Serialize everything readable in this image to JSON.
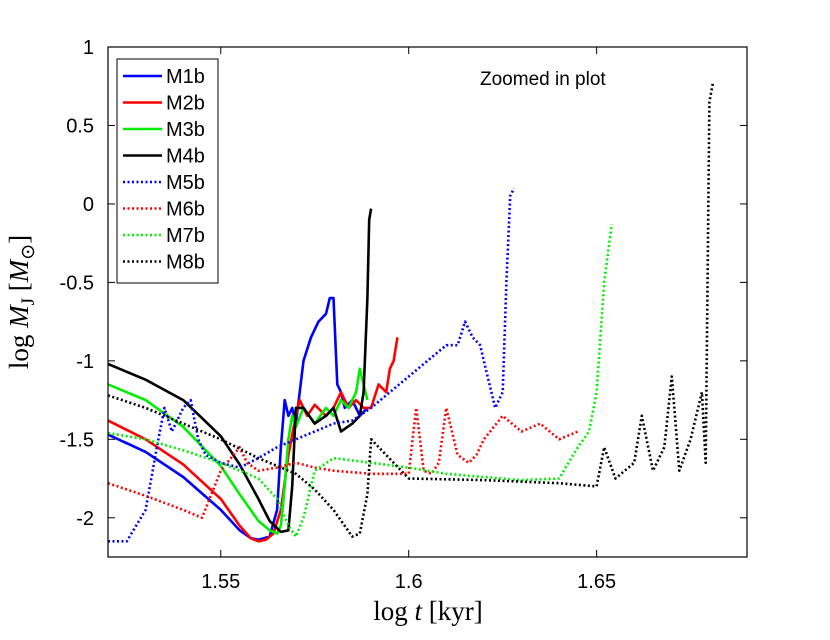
{
  "chart_data": {
    "type": "line",
    "title": "",
    "annotation": "Zoomed in plot",
    "xlabel": "log t [kyr]",
    "ylabel": "log M_J [M_sun]",
    "xlim": [
      1.52,
      1.69
    ],
    "ylim": [
      -2.25,
      1.0
    ],
    "xticks": [
      1.55,
      1.6,
      1.65
    ],
    "xtick_labels": [
      "1.55",
      "1.6",
      "1.65"
    ],
    "yticks": [
      -2,
      -1.5,
      -1,
      -0.5,
      0,
      0.5,
      1
    ],
    "ytick_labels": [
      "-2",
      "-1.5",
      "-1",
      "-0.5",
      "0",
      "0.5",
      "1"
    ],
    "legend_position": "top-left",
    "series": [
      {
        "name": "M1b",
        "color": "#0000ff",
        "style": "solid",
        "x": [
          1.52,
          1.53,
          1.54,
          1.55,
          1.555,
          1.558,
          1.56,
          1.563,
          1.565,
          1.566,
          1.567,
          1.568,
          1.569,
          1.57,
          1.572,
          1.574,
          1.576,
          1.578,
          1.579,
          1.58,
          1.581,
          1.582,
          1.583,
          1.585,
          1.587,
          1.589
        ],
        "y": [
          -1.47,
          -1.58,
          -1.74,
          -1.95,
          -2.08,
          -2.13,
          -2.14,
          -2.12,
          -1.95,
          -1.55,
          -1.25,
          -1.35,
          -1.3,
          -1.4,
          -1.0,
          -0.85,
          -0.75,
          -0.7,
          -0.6,
          -0.6,
          -1.15,
          -1.2,
          -1.3,
          -1.25,
          -1.35,
          -1.3
        ]
      },
      {
        "name": "M2b",
        "color": "#ff0000",
        "style": "solid",
        "x": [
          1.52,
          1.53,
          1.54,
          1.55,
          1.555,
          1.558,
          1.56,
          1.562,
          1.564,
          1.566,
          1.568,
          1.57,
          1.571,
          1.573,
          1.575,
          1.578,
          1.58,
          1.582,
          1.584,
          1.586,
          1.588,
          1.59,
          1.592,
          1.594,
          1.595,
          1.596,
          1.597
        ],
        "y": [
          -1.38,
          -1.5,
          -1.66,
          -1.88,
          -2.05,
          -2.13,
          -2.15,
          -2.14,
          -2.1,
          -1.95,
          -1.6,
          -1.35,
          -1.25,
          -1.35,
          -1.28,
          -1.35,
          -1.3,
          -1.2,
          -1.3,
          -1.25,
          -1.3,
          -1.3,
          -1.15,
          -1.2,
          -1.05,
          -1.0,
          -0.85
        ]
      },
      {
        "name": "M3b",
        "color": "#00ee00",
        "style": "solid",
        "x": [
          1.52,
          1.53,
          1.54,
          1.55,
          1.555,
          1.56,
          1.563,
          1.565,
          1.566,
          1.567,
          1.568,
          1.569,
          1.57,
          1.572,
          1.575,
          1.578,
          1.58,
          1.582,
          1.584,
          1.586,
          1.587,
          1.589
        ],
        "y": [
          -1.15,
          -1.25,
          -1.42,
          -1.67,
          -1.85,
          -2.02,
          -2.08,
          -2.1,
          -2.05,
          -1.8,
          -1.5,
          -1.35,
          -1.42,
          -1.3,
          -1.4,
          -1.3,
          -1.35,
          -1.25,
          -1.3,
          -1.2,
          -1.05,
          -1.25
        ]
      },
      {
        "name": "M4b",
        "color": "#000000",
        "style": "solid",
        "x": [
          1.52,
          1.53,
          1.54,
          1.55,
          1.555,
          1.56,
          1.563,
          1.566,
          1.568,
          1.569,
          1.57,
          1.572,
          1.575,
          1.578,
          1.58,
          1.582,
          1.585,
          1.587,
          1.588,
          1.589,
          1.5895,
          1.59
        ],
        "y": [
          -1.02,
          -1.12,
          -1.25,
          -1.48,
          -1.66,
          -1.88,
          -2.02,
          -2.09,
          -2.08,
          -1.8,
          -1.3,
          -1.3,
          -1.4,
          -1.35,
          -1.3,
          -1.45,
          -1.4,
          -1.35,
          -1.2,
          -0.6,
          -0.1,
          -0.03
        ]
      },
      {
        "name": "M5b",
        "color": "#0000ff",
        "style": "dotted",
        "x": [
          1.52,
          1.525,
          1.53,
          1.533,
          1.535,
          1.537,
          1.54,
          1.542,
          1.544,
          1.546,
          1.55,
          1.555,
          1.56,
          1.565,
          1.57,
          1.575,
          1.58,
          1.585,
          1.59,
          1.595,
          1.6,
          1.605,
          1.61,
          1.613,
          1.615,
          1.617,
          1.619,
          1.621,
          1.623,
          1.625,
          1.626,
          1.627,
          1.628
        ],
        "y": [
          -2.15,
          -2.15,
          -1.95,
          -1.55,
          -1.3,
          -1.45,
          -1.3,
          -1.25,
          -1.5,
          -1.6,
          -1.65,
          -1.68,
          -1.62,
          -1.55,
          -1.5,
          -1.45,
          -1.4,
          -1.38,
          -1.3,
          -1.2,
          -1.1,
          -1.0,
          -0.9,
          -0.9,
          -0.75,
          -0.85,
          -0.9,
          -1.1,
          -1.3,
          -1.2,
          -0.5,
          0.05,
          0.1
        ]
      },
      {
        "name": "M6b",
        "color": "#ff0000",
        "style": "dotted",
        "x": [
          1.52,
          1.53,
          1.54,
          1.545,
          1.55,
          1.555,
          1.557,
          1.56,
          1.565,
          1.57,
          1.575,
          1.58,
          1.59,
          1.6,
          1.602,
          1.604,
          1.606,
          1.608,
          1.61,
          1.613,
          1.616,
          1.618,
          1.62,
          1.625,
          1.63,
          1.635,
          1.64,
          1.645
        ],
        "y": [
          -1.78,
          -1.86,
          -1.95,
          -2.0,
          -1.7,
          -1.55,
          -1.65,
          -1.7,
          -1.68,
          -1.65,
          -1.68,
          -1.7,
          -1.72,
          -1.72,
          -1.3,
          -1.7,
          -1.72,
          -1.65,
          -1.3,
          -1.6,
          -1.65,
          -1.6,
          -1.5,
          -1.35,
          -1.45,
          -1.4,
          -1.5,
          -1.45
        ]
      },
      {
        "name": "M7b",
        "color": "#00ee00",
        "style": "dotted",
        "x": [
          1.52,
          1.53,
          1.54,
          1.55,
          1.56,
          1.565,
          1.568,
          1.57,
          1.572,
          1.575,
          1.58,
          1.59,
          1.6,
          1.61,
          1.62,
          1.63,
          1.64,
          1.645,
          1.648,
          1.65,
          1.652,
          1.654
        ],
        "y": [
          -1.46,
          -1.5,
          -1.57,
          -1.65,
          -1.75,
          -1.88,
          -2.05,
          -2.12,
          -2.0,
          -1.7,
          -1.62,
          -1.65,
          -1.68,
          -1.72,
          -1.74,
          -1.76,
          -1.75,
          -1.55,
          -1.45,
          -1.2,
          -0.5,
          -0.13
        ]
      },
      {
        "name": "M8b",
        "color": "#000000",
        "style": "dotted",
        "x": [
          1.52,
          1.53,
          1.54,
          1.55,
          1.56,
          1.57,
          1.575,
          1.58,
          1.585,
          1.587,
          1.589,
          1.59,
          1.6,
          1.62,
          1.64,
          1.65,
          1.652,
          1.655,
          1.66,
          1.662,
          1.665,
          1.668,
          1.67,
          1.672,
          1.675,
          1.678,
          1.679,
          1.68,
          1.681
        ],
        "y": [
          -1.22,
          -1.3,
          -1.4,
          -1.5,
          -1.62,
          -1.72,
          -1.82,
          -1.95,
          -2.12,
          -2.1,
          -1.85,
          -1.5,
          -1.75,
          -1.76,
          -1.78,
          -1.8,
          -1.55,
          -1.75,
          -1.65,
          -1.35,
          -1.7,
          -1.55,
          -1.1,
          -1.7,
          -1.5,
          -1.2,
          -1.65,
          0.65,
          0.78
        ]
      }
    ]
  }
}
